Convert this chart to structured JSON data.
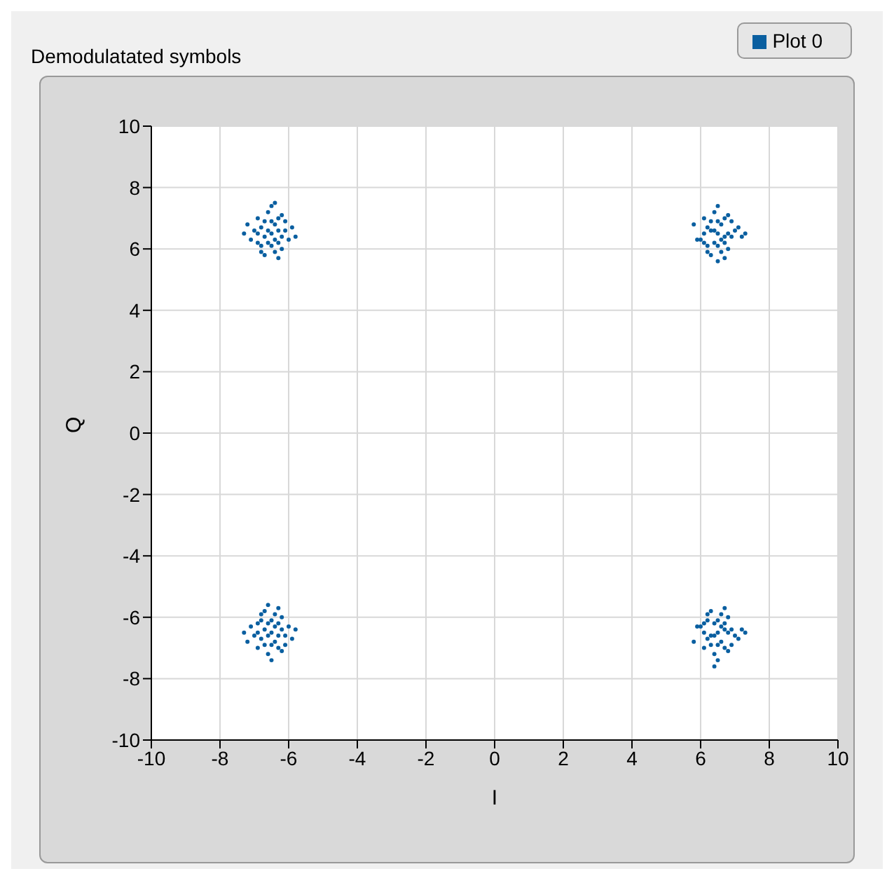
{
  "chart_data": {
    "type": "scatter",
    "title": "Demodulatated symbols",
    "xlabel": "I",
    "ylabel": "Q",
    "xlim": [
      -10,
      10
    ],
    "ylim": [
      -10,
      10
    ],
    "xticks": [
      -10,
      -8,
      -6,
      -4,
      -2,
      0,
      2,
      4,
      6,
      8,
      10
    ],
    "yticks": [
      -10,
      -8,
      -6,
      -4,
      -2,
      0,
      2,
      4,
      6,
      8,
      10
    ],
    "grid": true,
    "legend": "top right",
    "marker": "circle",
    "series": [
      {
        "name": "Plot 0",
        "color": "#0a5fa0",
        "x": [
          -6.5,
          -6.3,
          -6.7,
          -6.4,
          -6.6,
          -6.2,
          -6.8,
          -6.5,
          -6.5,
          -6.1,
          -6.9,
          -6.3,
          -6.7,
          -6.3,
          -6.9,
          -6.0,
          -7.0,
          -6.6,
          -6.4,
          -6.2,
          -7.1,
          -5.9,
          -6.8,
          -6.5,
          -6.3,
          -7.2,
          -5.8,
          -6.7,
          -6.1,
          -6.9,
          -6.4,
          -6.6,
          -6.2,
          -6.8,
          -6.4,
          -7.3,
          6.5,
          6.7,
          6.3,
          6.6,
          6.4,
          6.8,
          6.2,
          6.5,
          6.5,
          6.9,
          6.1,
          6.7,
          6.3,
          6.7,
          6.1,
          7.0,
          6.0,
          6.4,
          6.6,
          6.8,
          5.9,
          7.1,
          6.2,
          6.5,
          6.7,
          5.8,
          7.2,
          6.3,
          6.9,
          6.1,
          6.6,
          6.4,
          6.8,
          6.2,
          6.5,
          7.3,
          -6.5,
          -6.3,
          -6.7,
          -6.4,
          -6.6,
          -6.2,
          -6.8,
          -6.5,
          -6.5,
          -6.1,
          -6.9,
          -6.3,
          -6.7,
          -6.3,
          -6.9,
          -6.0,
          -7.0,
          -6.6,
          -6.4,
          -6.2,
          -7.1,
          -5.9,
          -6.8,
          -6.5,
          -6.3,
          -7.2,
          -5.8,
          -6.7,
          -6.1,
          -6.9,
          -6.4,
          -6.6,
          -6.2,
          -6.8,
          -6.6,
          -7.3,
          6.5,
          6.7,
          6.3,
          6.6,
          6.4,
          6.8,
          6.2,
          6.5,
          6.5,
          6.9,
          6.1,
          6.7,
          6.3,
          6.7,
          6.1,
          7.0,
          6.0,
          6.4,
          6.6,
          6.8,
          5.9,
          7.1,
          6.2,
          6.5,
          6.7,
          5.8,
          7.2,
          6.3,
          6.9,
          6.1,
          6.6,
          6.4,
          6.8,
          6.2,
          6.4,
          7.3
        ],
        "values": [
          6.5,
          6.6,
          6.4,
          6.8,
          6.2,
          6.4,
          6.7,
          6.9,
          6.1,
          6.6,
          6.5,
          6.2,
          6.9,
          7.0,
          6.2,
          6.3,
          6.6,
          7.2,
          5.9,
          7.1,
          6.3,
          6.7,
          5.9,
          7.4,
          5.7,
          6.8,
          6.4,
          5.8,
          6.9,
          7.0,
          6.3,
          6.6,
          6.0,
          6.1,
          7.5,
          6.5,
          6.5,
          6.4,
          6.6,
          6.8,
          6.2,
          6.5,
          6.7,
          6.9,
          6.1,
          6.4,
          6.5,
          6.2,
          6.9,
          7.0,
          6.2,
          6.6,
          6.3,
          7.2,
          5.9,
          7.1,
          6.3,
          6.7,
          5.9,
          7.4,
          5.7,
          6.8,
          6.4,
          5.8,
          6.9,
          7.0,
          6.3,
          6.6,
          6.0,
          6.1,
          5.6,
          6.5,
          -6.5,
          -6.6,
          -6.4,
          -6.8,
          -6.2,
          -6.4,
          -6.7,
          -6.9,
          -6.1,
          -6.6,
          -6.5,
          -6.2,
          -6.9,
          -7.0,
          -6.2,
          -6.3,
          -6.6,
          -7.2,
          -5.9,
          -7.1,
          -6.3,
          -6.7,
          -5.9,
          -7.4,
          -5.7,
          -6.8,
          -6.4,
          -5.8,
          -6.9,
          -7.0,
          -6.3,
          -6.6,
          -6.0,
          -6.1,
          -5.6,
          -6.5,
          -6.5,
          -6.4,
          -6.6,
          -6.8,
          -6.2,
          -6.5,
          -6.7,
          -6.9,
          -6.1,
          -6.4,
          -6.5,
          -6.2,
          -6.9,
          -7.0,
          -6.2,
          -6.6,
          -6.3,
          -7.2,
          -5.9,
          -7.1,
          -6.3,
          -6.7,
          -5.9,
          -7.4,
          -5.7,
          -6.8,
          -6.4,
          -5.8,
          -6.9,
          -7.0,
          -6.3,
          -6.6,
          -6.0,
          -6.1,
          -7.6,
          -6.5
        ]
      }
    ]
  }
}
